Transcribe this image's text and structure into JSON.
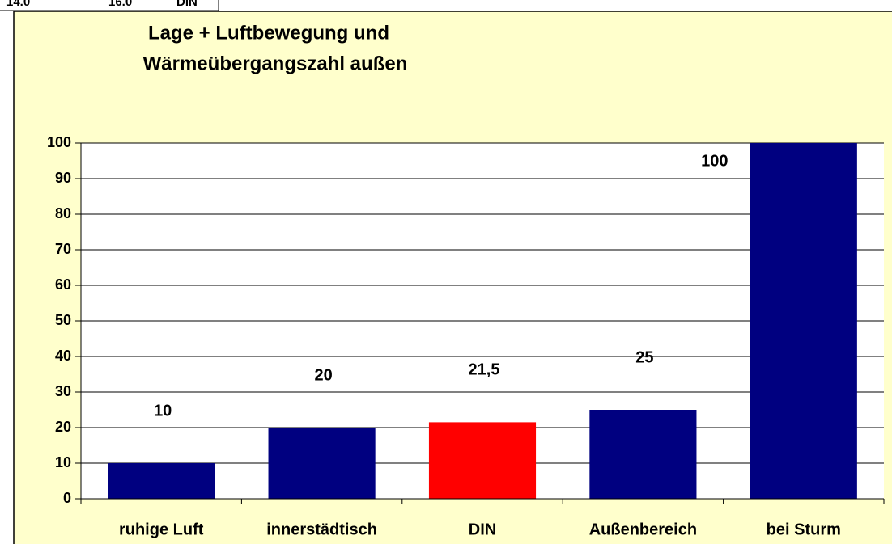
{
  "sheet_cells": [
    "14.0",
    "16.0",
    "DIN"
  ],
  "chart_data": {
    "type": "bar",
    "title": [
      "Lage + Luftbewegung und",
      "Wärmeübergangszahl außen"
    ],
    "categories": [
      "ruhige Luft",
      "innerstädtisch",
      "DIN",
      "Außenbereich",
      "bei Sturm"
    ],
    "values": [
      10,
      20,
      21.5,
      25,
      100
    ],
    "value_labels": [
      "10",
      "20",
      "21,5",
      "25",
      "100"
    ],
    "colors": [
      "#000080",
      "#000080",
      "#ff0000",
      "#000080",
      "#000080"
    ],
    "ylim": [
      0,
      100
    ],
    "yticks": [
      0,
      10,
      20,
      30,
      40,
      50,
      60,
      70,
      80,
      90,
      100
    ],
    "grid": true
  }
}
